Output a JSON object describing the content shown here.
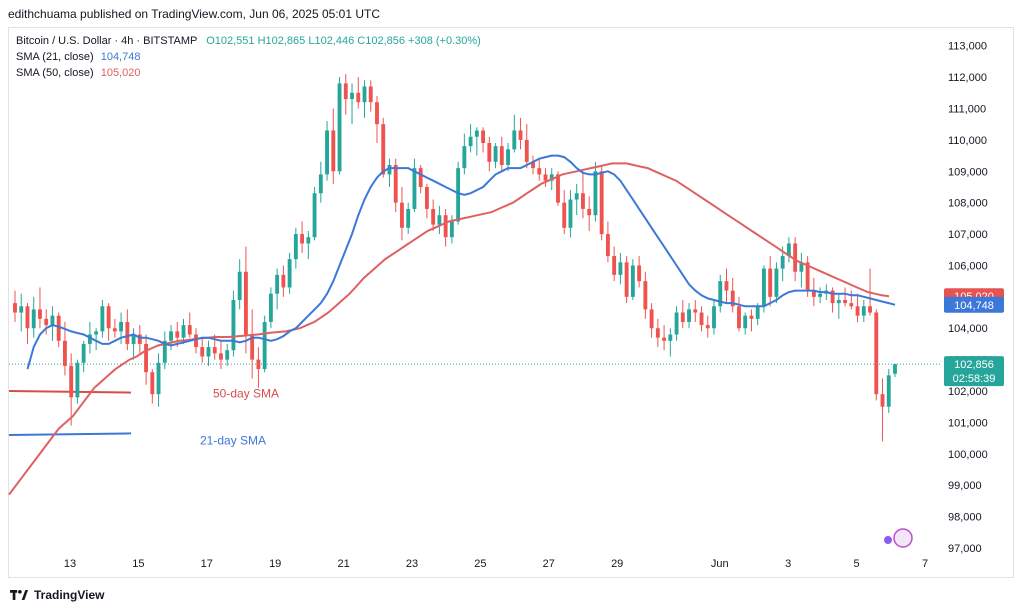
{
  "header": {
    "published": "edithchuama published on TradingView.com, Jun 06, 2025 05:01 UTC"
  },
  "legend": {
    "symbol": "Bitcoin / U.S. Dollar · 4h · BITSTAMP",
    "ohlc": "O102,551 H102,865 L102,446 C102,856 +308 (+0.30%)",
    "sma21_label": "SMA (21, close)",
    "sma21_value": "104,748",
    "sma50_label": "SMA (50, close)",
    "sma50_value": "105,020"
  },
  "footer": {
    "brand": "TradingView"
  },
  "chart_data": {
    "type": "candlestick",
    "colors": {
      "up": "#26a69a",
      "down": "#ef5350",
      "sma21": "#3c78d8",
      "sma50": "#e06060"
    },
    "y_ticks": [
      "113,000",
      "112,000",
      "111,000",
      "110,000",
      "109,000",
      "108,000",
      "107,000",
      "106,000",
      "105,000",
      "104,000",
      "103,000",
      "102,000",
      "101,000",
      "100,000",
      "99,000",
      "98,000",
      "97,000"
    ],
    "ylim": [
      97000,
      113500
    ],
    "x_ticks": [
      {
        "label": "13",
        "day": 13
      },
      {
        "label": "15",
        "day": 15
      },
      {
        "label": "17",
        "day": 17
      },
      {
        "label": "19",
        "day": 19
      },
      {
        "label": "21",
        "day": 21
      },
      {
        "label": "23",
        "day": 23
      },
      {
        "label": "25",
        "day": 25
      },
      {
        "label": "27",
        "day": 27
      },
      {
        "label": "29",
        "day": 29
      },
      {
        "label": "Jun",
        "day": 32
      },
      {
        "label": "3",
        "day": 34
      },
      {
        "label": "5",
        "day": 36
      },
      {
        "label": "7",
        "day": 38
      }
    ],
    "candles": [
      [
        104800,
        105200,
        104200,
        104500
      ],
      [
        104500,
        105100,
        103900,
        104700
      ],
      [
        104700,
        104800,
        103500,
        104000
      ],
      [
        104000,
        105000,
        103700,
        104600
      ],
      [
        104600,
        105300,
        104000,
        104300
      ],
      [
        104300,
        104600,
        103800,
        104100
      ],
      [
        104100,
        104700,
        103600,
        104400
      ],
      [
        104400,
        104500,
        103400,
        103600
      ],
      [
        103600,
        104200,
        102500,
        102800
      ],
      [
        102800,
        103200,
        100900,
        101800
      ],
      [
        101800,
        103000,
        101600,
        102900
      ],
      [
        102900,
        103600,
        102600,
        103500
      ],
      [
        103500,
        104200,
        103200,
        103800
      ],
      [
        103800,
        104000,
        103300,
        103900
      ],
      [
        103900,
        104900,
        103700,
        104700
      ],
      [
        104700,
        104800,
        103600,
        104000
      ],
      [
        104000,
        104300,
        103700,
        103900
      ],
      [
        103900,
        104500,
        103500,
        104200
      ],
      [
        104200,
        104600,
        103300,
        103500
      ],
      [
        103500,
        104000,
        103000,
        103800
      ],
      [
        103800,
        104100,
        103200,
        103500
      ],
      [
        103500,
        103800,
        102200,
        102600
      ],
      [
        102600,
        102700,
        101600,
        101900
      ],
      [
        101900,
        103200,
        101500,
        102900
      ],
      [
        102900,
        103900,
        102700,
        103600
      ],
      [
        103600,
        104100,
        103300,
        103900
      ],
      [
        103900,
        104200,
        103400,
        103700
      ],
      [
        103700,
        104300,
        103500,
        104100
      ],
      [
        104100,
        104500,
        103700,
        103800
      ],
      [
        103800,
        104000,
        103200,
        103400
      ],
      [
        103400,
        103700,
        102900,
        103100
      ],
      [
        103100,
        103600,
        102800,
        103400
      ],
      [
        103400,
        103800,
        103000,
        103200
      ],
      [
        103200,
        103600,
        102700,
        103000
      ],
      [
        103000,
        103500,
        102800,
        103300
      ],
      [
        103300,
        105200,
        103100,
        104900
      ],
      [
        104900,
        106200,
        104600,
        105800
      ],
      [
        105800,
        106600,
        103200,
        103800
      ],
      [
        103800,
        104600,
        102400,
        103000
      ],
      [
        103000,
        103400,
        102100,
        102700
      ],
      [
        102700,
        104400,
        102600,
        104200
      ],
      [
        104200,
        105300,
        104000,
        105100
      ],
      [
        105100,
        105900,
        104600,
        105700
      ],
      [
        105700,
        106000,
        105000,
        105300
      ],
      [
        105300,
        106400,
        105100,
        106200
      ],
      [
        106200,
        107200,
        105900,
        107000
      ],
      [
        107000,
        107400,
        106400,
        106700
      ],
      [
        106700,
        107100,
        106200,
        106900
      ],
      [
        106900,
        108500,
        106800,
        108300
      ],
      [
        108300,
        109300,
        108000,
        108900
      ],
      [
        108900,
        110600,
        108700,
        110300
      ],
      [
        110300,
        111000,
        108600,
        109000
      ],
      [
        109000,
        112000,
        108900,
        111800
      ],
      [
        111800,
        112100,
        110800,
        111300
      ],
      [
        111300,
        111800,
        110500,
        111500
      ],
      [
        111500,
        112000,
        111000,
        111200
      ],
      [
        111200,
        111900,
        110700,
        111700
      ],
      [
        111700,
        111900,
        110900,
        111200
      ],
      [
        111200,
        111400,
        109900,
        110500
      ],
      [
        110500,
        110700,
        108800,
        108900
      ],
      [
        108900,
        109400,
        108500,
        109200
      ],
      [
        109200,
        109400,
        107700,
        108000
      ],
      [
        108000,
        108500,
        106800,
        107200
      ],
      [
        107200,
        108000,
        107000,
        107800
      ],
      [
        107800,
        109400,
        107700,
        109100
      ],
      [
        109100,
        109200,
        108300,
        108500
      ],
      [
        108500,
        108600,
        107500,
        107800
      ],
      [
        107800,
        108100,
        107100,
        107300
      ],
      [
        107300,
        107900,
        107000,
        107600
      ],
      [
        107600,
        107800,
        106600,
        106900
      ],
      [
        106900,
        107600,
        106700,
        107400
      ],
      [
        107400,
        109300,
        107300,
        109100
      ],
      [
        109100,
        110200,
        108900,
        109800
      ],
      [
        109800,
        110500,
        109600,
        110100
      ],
      [
        110100,
        110400,
        109500,
        110300
      ],
      [
        110300,
        110400,
        109600,
        109900
      ],
      [
        109900,
        110100,
        109000,
        109300
      ],
      [
        109300,
        109900,
        109100,
        109800
      ],
      [
        109800,
        110100,
        109000,
        109200
      ],
      [
        109200,
        109900,
        109000,
        109700
      ],
      [
        109700,
        110800,
        109600,
        110300
      ],
      [
        110300,
        110700,
        109700,
        110000
      ],
      [
        110000,
        110500,
        109100,
        109300
      ],
      [
        109300,
        109500,
        108900,
        109100
      ],
      [
        109100,
        109400,
        108700,
        108900
      ],
      [
        108900,
        109100,
        108500,
        108700
      ],
      [
        108700,
        109100,
        108400,
        108900
      ],
      [
        108900,
        109000,
        107900,
        108000
      ],
      [
        108000,
        108400,
        107000,
        107200
      ],
      [
        107200,
        108400,
        106900,
        108100
      ],
      [
        108100,
        108600,
        107600,
        108300
      ],
      [
        108300,
        109000,
        107500,
        107800
      ],
      [
        107800,
        108200,
        107100,
        107600
      ],
      [
        107600,
        109300,
        107400,
        109000
      ],
      [
        109000,
        109200,
        106800,
        107000
      ],
      [
        107000,
        107400,
        106100,
        106300
      ],
      [
        106300,
        106600,
        105500,
        105700
      ],
      [
        105700,
        106400,
        105400,
        106100
      ],
      [
        106100,
        106300,
        104800,
        105000
      ],
      [
        105000,
        106200,
        104900,
        106000
      ],
      [
        106000,
        106300,
        105300,
        105500
      ],
      [
        105500,
        105800,
        104300,
        104600
      ],
      [
        104600,
        104800,
        103700,
        104000
      ],
      [
        104000,
        104300,
        103400,
        103700
      ],
      [
        103700,
        104100,
        103300,
        103600
      ],
      [
        103600,
        104000,
        103100,
        103800
      ],
      [
        103800,
        104700,
        103600,
        104500
      ],
      [
        104500,
        104900,
        104000,
        104200
      ],
      [
        104200,
        104800,
        104000,
        104600
      ],
      [
        104600,
        104900,
        104200,
        104500
      ],
      [
        104500,
        104700,
        103900,
        104100
      ],
      [
        104100,
        104400,
        103700,
        104000
      ],
      [
        104000,
        104900,
        103800,
        104700
      ],
      [
        104700,
        105700,
        104500,
        105500
      ],
      [
        105500,
        105900,
        104800,
        105200
      ],
      [
        105200,
        105600,
        104500,
        104700
      ],
      [
        104700,
        105000,
        103900,
        104000
      ],
      [
        104000,
        104500,
        103800,
        104400
      ],
      [
        104400,
        104600,
        103900,
        104300
      ],
      [
        104300,
        104800,
        104100,
        104700
      ],
      [
        104700,
        106000,
        104500,
        105900
      ],
      [
        105900,
        106300,
        104700,
        105000
      ],
      [
        105000,
        106100,
        104800,
        105900
      ],
      [
        105900,
        106600,
        105500,
        106300
      ],
      [
        106300,
        106900,
        106100,
        106700
      ],
      [
        106700,
        106900,
        105500,
        105800
      ],
      [
        105800,
        106400,
        105300,
        106100
      ],
      [
        106100,
        106300,
        105000,
        105200
      ],
      [
        105200,
        105600,
        104700,
        105000
      ],
      [
        105000,
        105300,
        104800,
        105100
      ],
      [
        105100,
        105400,
        104900,
        105200
      ],
      [
        105200,
        105300,
        104500,
        104800
      ],
      [
        104800,
        105100,
        104300,
        104900
      ],
      [
        104900,
        105300,
        104700,
        104800
      ],
      [
        104800,
        105200,
        104600,
        104700
      ],
      [
        104700,
        105100,
        104200,
        104400
      ],
      [
        104400,
        104900,
        104200,
        104700
      ],
      [
        104700,
        105900,
        104400,
        104500
      ],
      [
        104500,
        104600,
        101700,
        101900
      ],
      [
        101900,
        102400,
        100400,
        101500
      ],
      [
        101500,
        102700,
        101300,
        102500
      ],
      [
        102551,
        102865,
        102446,
        102856
      ]
    ],
    "sma21": [
      102700,
      103400,
      103800,
      104000,
      104100,
      104050,
      103980,
      103900,
      103850,
      103800,
      103700,
      103600,
      103500,
      103500,
      103600,
      103700,
      103750,
      103800,
      103700,
      103700,
      103650,
      103600,
      103500,
      103450,
      103500,
      103550,
      103600,
      103650,
      103700,
      103700,
      103650,
      103600,
      103600,
      103600,
      103550,
      103600,
      103700,
      103700,
      103650,
      103600,
      103650,
      103750,
      103900,
      104000,
      104200,
      104400,
      104600,
      104800,
      105100,
      105500,
      106000,
      106500,
      107000,
      107600,
      108100,
      108500,
      108800,
      109000,
      109100,
      109100,
      109100,
      109100,
      109000,
      108900,
      108800,
      108700,
      108600,
      108500,
      108400,
      108300,
      108250,
      108300,
      108400,
      108500,
      108700,
      108900,
      109000,
      109100,
      109100,
      109100,
      109200,
      109300,
      109400,
      109450,
      109500,
      109500,
      109450,
      109300,
      109100,
      108950,
      108900,
      108900,
      108950,
      109000,
      108900,
      108700,
      108400,
      108100,
      107800,
      107500,
      107200,
      106900,
      106600,
      106300,
      106000,
      105700,
      105400,
      105200,
      105050,
      104950,
      104900,
      104850,
      104800,
      104800,
      104750,
      104700,
      104700,
      104700,
      104700,
      104800,
      104900,
      105050,
      105150,
      105200,
      105200,
      105200,
      105200,
      105150,
      105150,
      105100,
      105100,
      105100,
      105050,
      105050,
      105000,
      104950,
      104900,
      104850,
      104800,
      104748
    ],
    "sma50": [
      98700,
      99000,
      99300,
      99600,
      99900,
      100200,
      100500,
      100800,
      101000,
      101200,
      101500,
      101800,
      102100,
      102300,
      102500,
      102700,
      102850,
      103000,
      103100,
      103250,
      103350,
      103450,
      103500,
      103550,
      103600,
      103620,
      103650,
      103680,
      103700,
      103720,
      103720,
      103720,
      103740,
      103760,
      103780,
      103800,
      103830,
      103860,
      103880,
      103900,
      103950,
      104000,
      104100,
      104200,
      104350,
      104500,
      104700,
      104900,
      105100,
      105350,
      105600,
      105800,
      106000,
      106200,
      106350,
      106500,
      106650,
      106800,
      106950,
      107100,
      107200,
      107300,
      107400,
      107450,
      107500,
      107550,
      107600,
      107650,
      107700,
      107800,
      107900,
      108000,
      108150,
      108300,
      108450,
      108600,
      108700,
      108800,
      108900,
      108950,
      109000,
      109050,
      109100,
      109150,
      109200,
      109250,
      109250,
      109250,
      109200,
      109150,
      109100,
      109000,
      108900,
      108800,
      108700,
      108550,
      108400,
      108250,
      108100,
      107950,
      107800,
      107650,
      107500,
      107350,
      107200,
      107050,
      106900,
      106750,
      106600,
      106450,
      106300,
      106150,
      106050,
      105950,
      105850,
      105750,
      105650,
      105550,
      105450,
      105350,
      105250,
      105150,
      105100,
      105050,
      105020
    ],
    "sma21_tag": "104,748",
    "sma50_tag": "105,020",
    "price_tag": "102,856",
    "countdown_tag": "02:58:39",
    "annotations": [
      "50-day SMA",
      "21-day SMA"
    ]
  }
}
